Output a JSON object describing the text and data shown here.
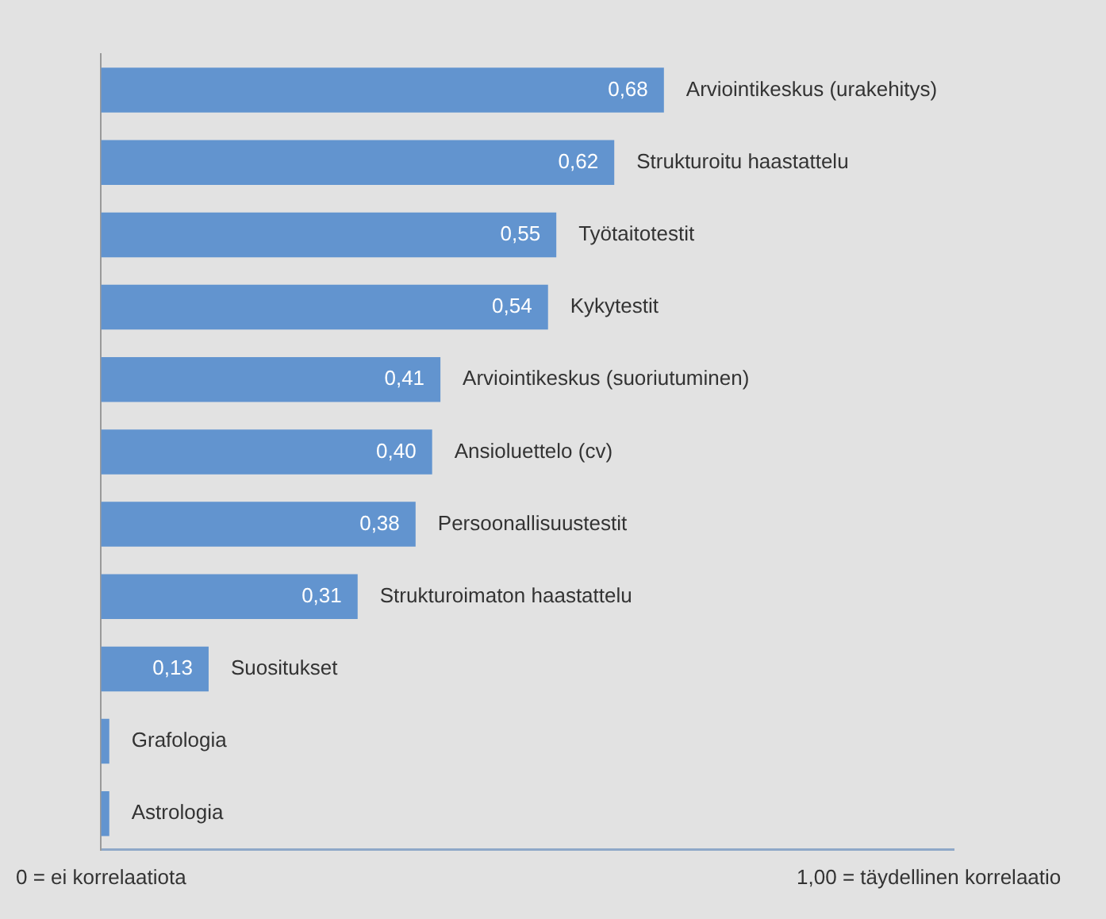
{
  "chart_data": {
    "type": "bar",
    "orientation": "horizontal",
    "categories": [
      "Arviointikeskus (urakehitys)",
      "Strukturoitu haastattelu",
      "Työtaitotestit",
      "Kykytestit",
      "Arviointikeskus (suoriutuminen)",
      "Ansioluettelo (cv)",
      "Persoonallisuustestit",
      "Strukturoimaton haastattelu",
      "Suositukset",
      "Grafologia",
      "Astrologia"
    ],
    "values": [
      0.68,
      0.62,
      0.55,
      0.54,
      0.41,
      0.4,
      0.38,
      0.31,
      0.13,
      0.01,
      0.01
    ],
    "value_labels": [
      "0,68",
      "0,62",
      "0,55",
      "0,54",
      "0,41",
      "0,40",
      "0,38",
      "0,31",
      "0,13",
      null,
      null
    ],
    "color": "#6294cf",
    "xlim": [
      0,
      1.03
    ],
    "xticks": [
      {
        "value": 0,
        "label": "0 = ei korrelaatiota"
      },
      {
        "value": 1,
        "label": "1,00 = täydellinen korrelaatio"
      }
    ],
    "grid": false,
    "legend": false
  }
}
